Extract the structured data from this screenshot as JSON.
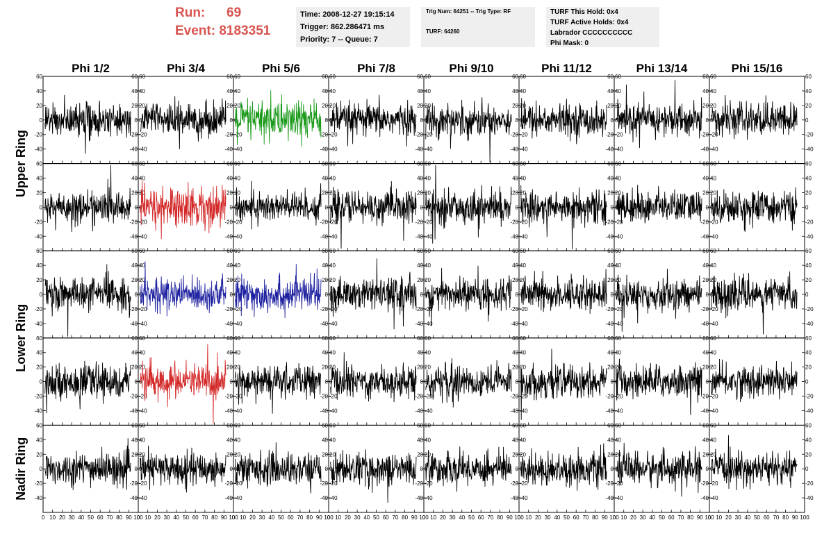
{
  "header": {
    "run_label": "Run:",
    "run_value": "69",
    "event_label": "Event:",
    "event_value": "8183351",
    "time": "Time: 2008-12-27 19:15:14",
    "trigger": "Trigger: 862.286471 ms",
    "priority": "Priority: 7 -- Queue: 7",
    "trig_num": "Trig Num: 64251 -- Trig Type: RF",
    "turf": "TURF: 64260",
    "turf_this_hold": "TURF This Hold: 0x4",
    "turf_active_holds": "TURF Active Holds: 0x4",
    "labrador": "Labrador CCCCCCCCCC",
    "phi_mask": "Phi Mask: 0"
  },
  "chart_data": {
    "type": "line",
    "columns": [
      "Phi 1/2",
      "Phi 3/4",
      "Phi 5/6",
      "Phi 7/8",
      "Phi 9/10",
      "Phi 11/12",
      "Phi 13/14",
      "Phi 15/16"
    ],
    "row_groups": [
      {
        "label": "Upper Ring",
        "rows": [
          0,
          1
        ]
      },
      {
        "label": "Lower Ring",
        "rows": [
          2,
          3
        ]
      },
      {
        "label": "Nadir Ring",
        "rows": [
          4
        ]
      }
    ],
    "xlim": [
      0,
      100
    ],
    "ylim": [
      -60,
      60
    ],
    "yticks": [
      -40,
      -20,
      0,
      20,
      40,
      60
    ],
    "xticks": [
      0,
      10,
      20,
      30,
      40,
      50,
      60,
      70,
      80,
      90,
      100
    ],
    "waveform_samples": 260,
    "waveform_end_x": 92,
    "default_color": "#000000",
    "highlights": [
      {
        "row": 0,
        "col": 2,
        "color": "#1a9a1a",
        "amplitude": 14
      },
      {
        "row": 1,
        "col": 1,
        "color": "#d42a2a",
        "amplitude": 14
      },
      {
        "row": 2,
        "col": 1,
        "color": "#1f22a0",
        "amplitude": 11
      },
      {
        "row": 2,
        "col": 2,
        "color": "#1f22a0",
        "amplitude": 12
      },
      {
        "row": 3,
        "col": 1,
        "color": "#d42a2a",
        "amplitude": 12
      }
    ],
    "default_amplitude": 11
  }
}
